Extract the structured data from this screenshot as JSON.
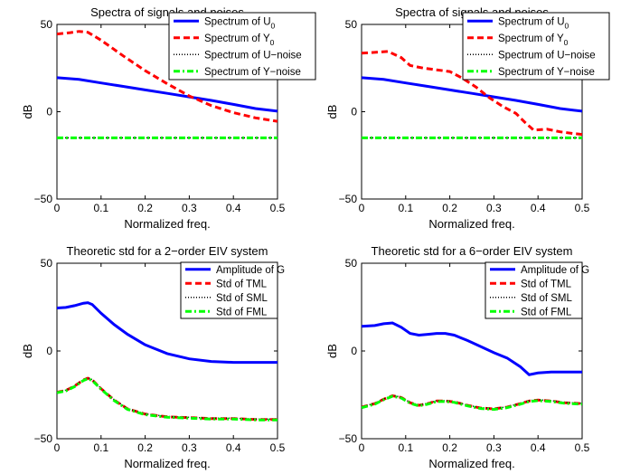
{
  "chart_data": [
    {
      "type": "line",
      "title": "Spectra of signals and noises",
      "xlabel": "Normalized freq.",
      "ylabel": "dB",
      "xlim": [
        0,
        0.5
      ],
      "ylim": [
        -50,
        50
      ],
      "xticks": [
        0,
        0.1,
        0.2,
        0.3,
        0.4,
        0.5
      ],
      "xtick_labels": [
        "0",
        "0.1",
        "0.2",
        "0.3",
        "0.4",
        "0.5"
      ],
      "yticks": [
        -50,
        0,
        50
      ],
      "ytick_labels": [
        "−50",
        "0",
        "50"
      ],
      "legend_placement": "top-right",
      "grid": false,
      "series": [
        {
          "name": "Spectrum of U",
          "sub": "0",
          "color": "#0000ff",
          "style": "solid",
          "x": [
            0,
            0.05,
            0.1,
            0.15,
            0.2,
            0.25,
            0.3,
            0.35,
            0.4,
            0.45,
            0.5
          ],
          "y": [
            19.5,
            18.5,
            16.5,
            14.5,
            12.5,
            10.5,
            8.5,
            6.5,
            4.2,
            1.8,
            0.3
          ]
        },
        {
          "name": "Spectrum of Y",
          "sub": "0",
          "color": "#ff0000",
          "style": "dashed",
          "x": [
            0,
            0.03,
            0.05,
            0.07,
            0.1,
            0.15,
            0.2,
            0.25,
            0.3,
            0.35,
            0.4,
            0.45,
            0.5
          ],
          "y": [
            44.5,
            45.3,
            46,
            45.5,
            41,
            32,
            23.5,
            16,
            9,
            3.5,
            -0.5,
            -3.5,
            -5.5
          ]
        },
        {
          "name": "Spectrum of U−noise",
          "sub": "",
          "color": "#000000",
          "style": "dotted",
          "x": [
            0,
            0.5
          ],
          "y": [
            -15,
            -15
          ]
        },
        {
          "name": "Spectrum of Y−noise",
          "sub": "",
          "color": "#00ff00",
          "style": "dashdot",
          "x": [
            0,
            0.5
          ],
          "y": [
            -15,
            -15
          ]
        }
      ]
    },
    {
      "type": "line",
      "title": "Spectra of signals and noises",
      "xlabel": "Normalized freq.",
      "ylabel": "dB",
      "xlim": [
        0,
        0.5
      ],
      "ylim": [
        -50,
        50
      ],
      "xticks": [
        0,
        0.1,
        0.2,
        0.3,
        0.4,
        0.5
      ],
      "xtick_labels": [
        "0",
        "0.1",
        "0.2",
        "0.3",
        "0.4",
        "0.5"
      ],
      "yticks": [
        -50,
        0,
        50
      ],
      "ytick_labels": [
        "−50",
        "0",
        "50"
      ],
      "legend_placement": "top-right",
      "grid": false,
      "series": [
        {
          "name": "Spectrum of U",
          "sub": "0",
          "color": "#0000ff",
          "style": "solid",
          "x": [
            0,
            0.05,
            0.1,
            0.15,
            0.2,
            0.25,
            0.3,
            0.35,
            0.4,
            0.45,
            0.5
          ],
          "y": [
            19.5,
            18.5,
            16.5,
            14.5,
            12.5,
            10.5,
            8.5,
            6.5,
            4.2,
            1.8,
            0.3
          ]
        },
        {
          "name": "Spectrum of Y",
          "sub": "0",
          "color": "#ff0000",
          "style": "dashed",
          "x": [
            0,
            0.03,
            0.06,
            0.09,
            0.11,
            0.14,
            0.17,
            0.2,
            0.23,
            0.26,
            0.29,
            0.32,
            0.35,
            0.37,
            0.39,
            0.42,
            0.45,
            0.48,
            0.5
          ],
          "y": [
            33.5,
            34,
            34.5,
            31,
            26.5,
            25,
            24,
            23,
            19,
            14,
            8,
            3,
            -1,
            -6,
            -10.5,
            -10,
            -11.5,
            -12.5,
            -13
          ]
        },
        {
          "name": "Spectrum of U−noise",
          "sub": "",
          "color": "#000000",
          "style": "dotted",
          "x": [
            0,
            0.5
          ],
          "y": [
            -15,
            -15
          ]
        },
        {
          "name": "Spectrum of Y−noise",
          "sub": "",
          "color": "#00ff00",
          "style": "dashdot",
          "x": [
            0,
            0.5
          ],
          "y": [
            -15,
            -15
          ]
        }
      ]
    },
    {
      "type": "line",
      "title": "Theoretic std for a 2−order EIV system",
      "xlabel": "Normalized freq.",
      "ylabel": "dB",
      "xlim": [
        0,
        0.5
      ],
      "ylim": [
        -50,
        50
      ],
      "xticks": [
        0,
        0.1,
        0.2,
        0.3,
        0.4,
        0.5
      ],
      "xtick_labels": [
        "0",
        "0.1",
        "0.2",
        "0.3",
        "0.4",
        "0.5"
      ],
      "yticks": [
        -50,
        0,
        50
      ],
      "ytick_labels": [
        "−50",
        "0",
        "50"
      ],
      "legend_placement": "top-right",
      "grid": false,
      "series": [
        {
          "name": "Amplitude of G",
          "sub": "",
          "color": "#0000ff",
          "style": "solid",
          "x": [
            0,
            0.02,
            0.04,
            0.06,
            0.07,
            0.08,
            0.1,
            0.13,
            0.16,
            0.2,
            0.25,
            0.3,
            0.35,
            0.4,
            0.45,
            0.5
          ],
          "y": [
            24.5,
            24.8,
            25.8,
            27.2,
            27.5,
            26.5,
            21.5,
            15,
            9.5,
            3.5,
            -1.5,
            -4.5,
            -6,
            -6.5,
            -6.5,
            -6.5
          ]
        },
        {
          "name": "Std of TML",
          "sub": "",
          "color": "#ff0000",
          "style": "dashed",
          "x": [
            0,
            0.02,
            0.04,
            0.06,
            0.07,
            0.08,
            0.1,
            0.13,
            0.16,
            0.2,
            0.25,
            0.3,
            0.35,
            0.4,
            0.45,
            0.5
          ],
          "y": [
            -23.5,
            -22.5,
            -20,
            -16.5,
            -15.5,
            -16.5,
            -21.5,
            -28,
            -33,
            -36,
            -37.5,
            -38,
            -38.5,
            -38.5,
            -39,
            -39
          ]
        },
        {
          "name": "Std of SML",
          "sub": "",
          "color": "#000000",
          "style": "dotted",
          "x": [
            0,
            0.02,
            0.04,
            0.06,
            0.07,
            0.08,
            0.1,
            0.13,
            0.16,
            0.2,
            0.25,
            0.3,
            0.35,
            0.4,
            0.45,
            0.5
          ],
          "y": [
            -23.3,
            -22.3,
            -19.8,
            -16.3,
            -15.3,
            -16.3,
            -21.3,
            -27.8,
            -32.8,
            -35.8,
            -37.3,
            -37.8,
            -38.3,
            -38.3,
            -38.8,
            -38.8
          ]
        },
        {
          "name": "Std of FML",
          "sub": "",
          "color": "#00ff00",
          "style": "dashdot",
          "x": [
            0,
            0.02,
            0.04,
            0.06,
            0.07,
            0.08,
            0.1,
            0.13,
            0.16,
            0.2,
            0.25,
            0.3,
            0.35,
            0.4,
            0.45,
            0.5
          ],
          "y": [
            -23.8,
            -22.8,
            -20.3,
            -16.8,
            -15.8,
            -16.8,
            -21.8,
            -28.3,
            -33.3,
            -36.3,
            -37.8,
            -38.3,
            -38.8,
            -38.8,
            -39.3,
            -39.3
          ]
        }
      ]
    },
    {
      "type": "line",
      "title": "Theoretic std for a 6−order EIV system",
      "xlabel": "Normalized freq.",
      "ylabel": "dB",
      "xlim": [
        0,
        0.5
      ],
      "ylim": [
        -50,
        50
      ],
      "xticks": [
        0,
        0.1,
        0.2,
        0.3,
        0.4,
        0.5
      ],
      "xtick_labels": [
        "0",
        "0.1",
        "0.2",
        "0.3",
        "0.4",
        "0.5"
      ],
      "yticks": [
        -50,
        0,
        50
      ],
      "ytick_labels": [
        "−50",
        "0",
        "50"
      ],
      "legend_placement": "top-right",
      "grid": false,
      "series": [
        {
          "name": "Amplitude of G",
          "sub": "",
          "color": "#0000ff",
          "style": "solid",
          "x": [
            0,
            0.03,
            0.05,
            0.07,
            0.09,
            0.11,
            0.13,
            0.15,
            0.17,
            0.19,
            0.21,
            0.24,
            0.27,
            0.3,
            0.33,
            0.36,
            0.38,
            0.4,
            0.43,
            0.46,
            0.5
          ],
          "y": [
            14,
            14.5,
            15.5,
            16,
            13.5,
            10,
            9,
            9.5,
            10,
            10,
            9,
            6,
            2.5,
            -1,
            -4,
            -9,
            -13.5,
            -12.5,
            -12,
            -12,
            -12
          ]
        },
        {
          "name": "Std of TML",
          "sub": "",
          "color": "#ff0000",
          "style": "dashed",
          "x": [
            0,
            0.03,
            0.05,
            0.07,
            0.09,
            0.11,
            0.13,
            0.15,
            0.17,
            0.19,
            0.21,
            0.24,
            0.27,
            0.3,
            0.33,
            0.36,
            0.38,
            0.4,
            0.43,
            0.46,
            0.5
          ],
          "y": [
            -32,
            -30,
            -27.5,
            -25.5,
            -26.5,
            -29.5,
            -31,
            -30,
            -28.5,
            -28.5,
            -29,
            -31,
            -32.5,
            -33,
            -32,
            -30,
            -28.5,
            -28,
            -28.5,
            -29.5,
            -30
          ]
        },
        {
          "name": "Std of SML",
          "sub": "",
          "color": "#000000",
          "style": "dotted",
          "x": [
            0,
            0.03,
            0.05,
            0.07,
            0.09,
            0.11,
            0.13,
            0.15,
            0.17,
            0.19,
            0.21,
            0.24,
            0.27,
            0.3,
            0.33,
            0.36,
            0.38,
            0.4,
            0.43,
            0.46,
            0.5
          ],
          "y": [
            -31.8,
            -29.8,
            -27.3,
            -25.3,
            -26.3,
            -29.3,
            -30.8,
            -29.8,
            -28.3,
            -28.3,
            -28.8,
            -30.8,
            -32.3,
            -32.8,
            -31.8,
            -29.8,
            -28.3,
            -27.8,
            -28.3,
            -29.3,
            -29.8
          ]
        },
        {
          "name": "Std of FML",
          "sub": "",
          "color": "#00ff00",
          "style": "dashdot",
          "x": [
            0,
            0.03,
            0.05,
            0.07,
            0.09,
            0.11,
            0.13,
            0.15,
            0.17,
            0.19,
            0.21,
            0.24,
            0.27,
            0.3,
            0.33,
            0.36,
            0.38,
            0.4,
            0.43,
            0.46,
            0.5
          ],
          "y": [
            -32.3,
            -30.3,
            -27.8,
            -25.8,
            -26.8,
            -29.8,
            -31.3,
            -30.3,
            -28.8,
            -28.8,
            -29.3,
            -31.3,
            -32.8,
            -33.3,
            -32.3,
            -30.3,
            -28.8,
            -28.3,
            -28.8,
            -29.8,
            -30.3
          ]
        }
      ]
    }
  ]
}
